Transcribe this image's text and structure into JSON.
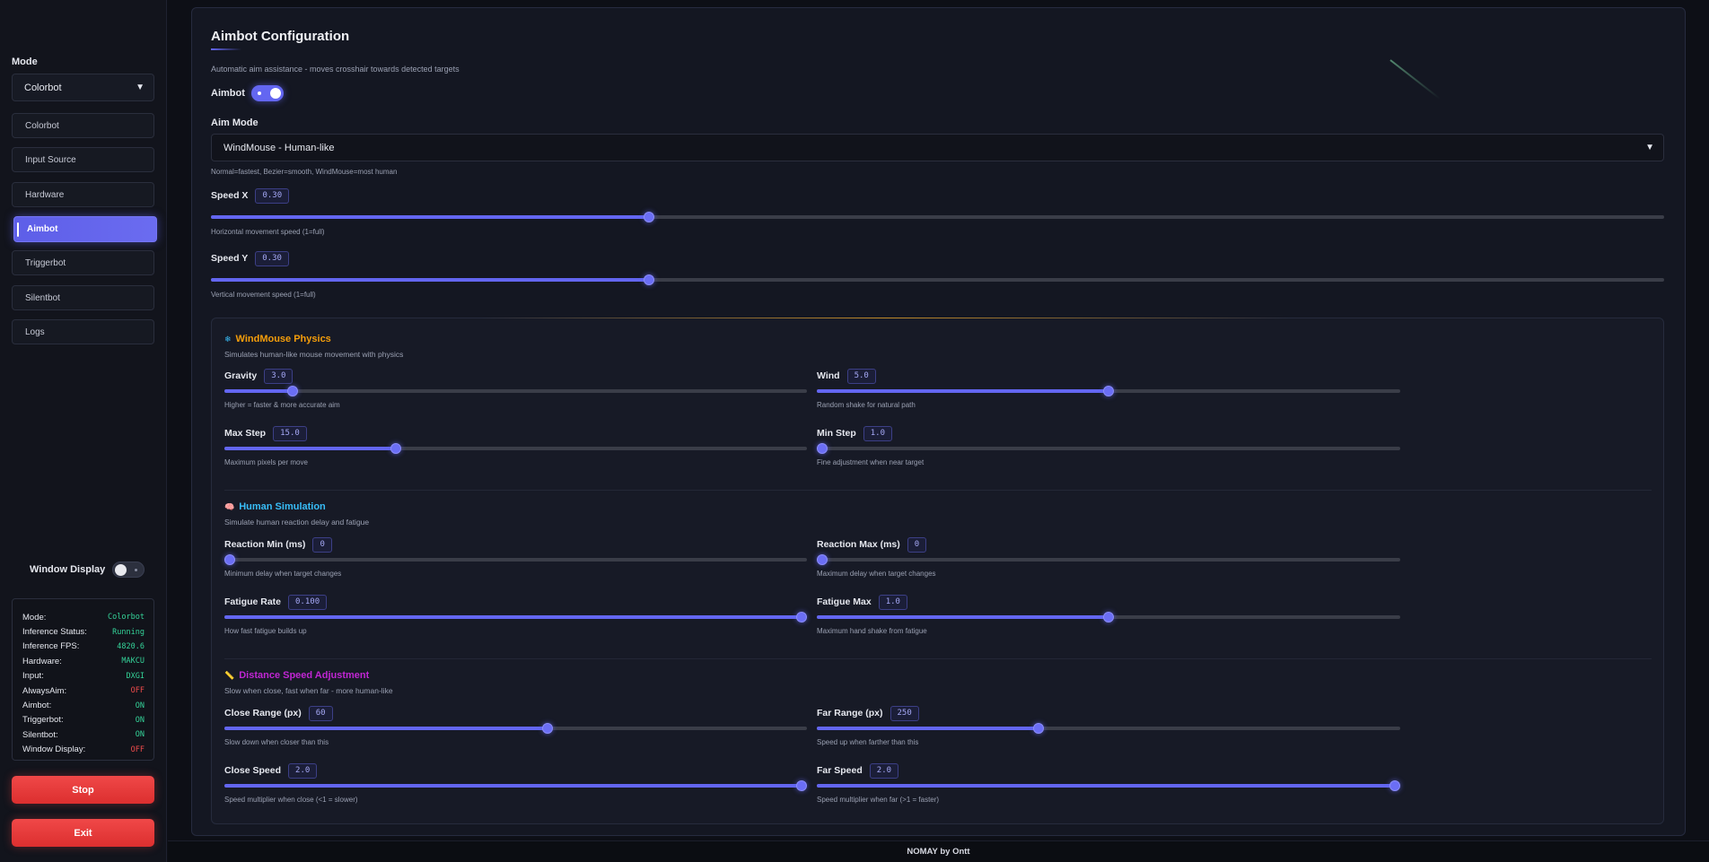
{
  "sidebar": {
    "mode_label": "Mode",
    "mode_value": "Colorbot",
    "nav": [
      {
        "label": "Colorbot",
        "active": false
      },
      {
        "label": "Input Source",
        "active": false
      },
      {
        "label": "Hardware",
        "active": false
      },
      {
        "label": "Aimbot",
        "active": true
      },
      {
        "label": "Triggerbot",
        "active": false
      },
      {
        "label": "Silentbot",
        "active": false
      },
      {
        "label": "Logs",
        "active": false
      }
    ],
    "window_display_label": "Window Display",
    "status": [
      {
        "key": "Mode:",
        "value": "Colorbot",
        "color": "#34d399"
      },
      {
        "key": "Inference Status:",
        "value": "Running",
        "color": "#34d399"
      },
      {
        "key": "Inference FPS:",
        "value": "4820.6",
        "color": "#34d399"
      },
      {
        "key": "Hardware:",
        "value": "MAKCU",
        "color": "#34d399"
      },
      {
        "key": "Input:",
        "value": "DXGI",
        "color": "#34d399"
      },
      {
        "key": "AlwaysAim:",
        "value": "OFF",
        "color": "#f04b4b"
      },
      {
        "key": "Aimbot:",
        "value": "ON",
        "color": "#34d399"
      },
      {
        "key": "Triggerbot:",
        "value": "ON",
        "color": "#34d399"
      },
      {
        "key": "Silentbot:",
        "value": "ON",
        "color": "#34d399"
      },
      {
        "key": "Window Display:",
        "value": "OFF",
        "color": "#f04b4b"
      }
    ],
    "stop_label": "Stop",
    "exit_label": "Exit"
  },
  "main": {
    "title": "Aimbot Configuration",
    "description": "Automatic aim assistance - moves crosshair towards detected targets",
    "aimbot_label": "Aimbot",
    "aim_mode_label": "Aim Mode",
    "aim_mode_value": "WindMouse - Human-like",
    "aim_mode_hint": "Normal=fastest, Bezier=smooth, WindMouse=most human",
    "speed_x": {
      "label": "Speed X",
      "value": "0.30",
      "hint": "Horizontal movement speed (1=full)",
      "fraction": 0.3
    },
    "speed_y": {
      "label": "Speed Y",
      "value": "0.30",
      "hint": "Vertical movement speed (1=full)",
      "fraction": 0.3
    }
  },
  "windmouse": {
    "icon": "❄",
    "title": "WindMouse Physics",
    "desc": "Simulates human-like mouse movement with physics",
    "color": "#f59e0b",
    "gravity": {
      "label": "Gravity",
      "value": "3.0",
      "hint": "Higher = faster & more accurate aim",
      "fraction": 0.11
    },
    "wind": {
      "label": "Wind",
      "value": "5.0",
      "hint": "Random shake for natural path",
      "fraction": 0.5
    },
    "max_step": {
      "label": "Max Step",
      "value": "15.0",
      "hint": "Maximum pixels per move",
      "fraction": 0.29
    },
    "min_step": {
      "label": "Min Step",
      "value": "1.0",
      "hint": "Fine adjustment when near target",
      "fraction": 0.0
    }
  },
  "human": {
    "icon": "🧠",
    "title": "Human Simulation",
    "desc": "Simulate human reaction delay and fatigue",
    "color": "#38bdf8",
    "reaction_min": {
      "label": "Reaction Min (ms)",
      "value": "0",
      "hint": "Minimum delay when target changes",
      "fraction": 0.0
    },
    "reaction_max": {
      "label": "Reaction Max (ms)",
      "value": "0",
      "hint": "Maximum delay when target changes",
      "fraction": 0.0
    },
    "fatigue_rate": {
      "label": "Fatigue Rate",
      "value": "0.100",
      "hint": "How fast fatigue builds up",
      "fraction": 1.0
    },
    "fatigue_max": {
      "label": "Fatigue Max",
      "value": "1.0",
      "hint": "Maximum hand shake from fatigue",
      "fraction": 0.5
    }
  },
  "distance": {
    "icon": "📏",
    "title": "Distance Speed Adjustment",
    "desc": "Slow when close, fast when far - more human-like",
    "color": "#c026d3",
    "close_range": {
      "label": "Close Range (px)",
      "value": "60",
      "hint": "Slow down when closer than this",
      "fraction": 0.555
    },
    "far_range": {
      "label": "Far Range (px)",
      "value": "250",
      "hint": "Speed up when farther than this",
      "fraction": 0.377
    },
    "close_speed": {
      "label": "Close Speed",
      "value": "2.0",
      "hint": "Speed multiplier when close (<1 = slower)",
      "fraction": 1.0
    },
    "far_speed": {
      "label": "Far Speed",
      "value": "2.0",
      "hint": "Speed multiplier when far (>1 = faster)",
      "fraction": 1.0
    }
  },
  "footer": {
    "text": "NOMAY by Ontt"
  },
  "colors": {
    "accent": "#6366f1",
    "danger": "#ef4444",
    "ok": "#34d399"
  }
}
